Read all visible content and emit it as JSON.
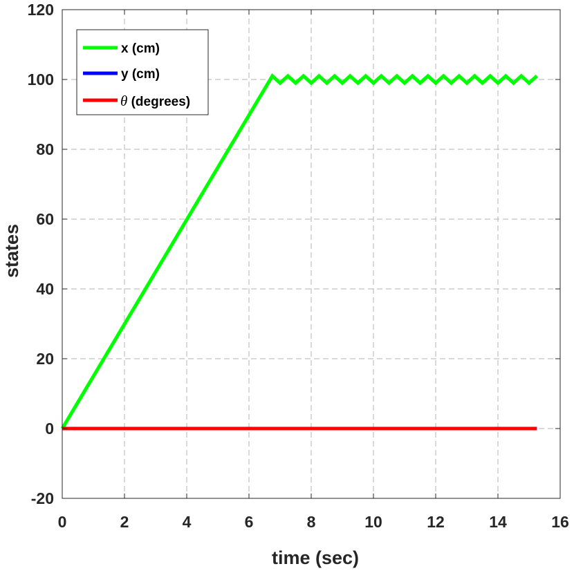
{
  "chart_data": {
    "type": "line",
    "xlabel": "time (sec)",
    "ylabel": "states",
    "xlim": [
      0,
      16
    ],
    "ylim": [
      -20,
      120
    ],
    "xticks": [
      0,
      2,
      4,
      6,
      8,
      10,
      12,
      14,
      16
    ],
    "yticks": [
      -20,
      0,
      20,
      40,
      60,
      80,
      100,
      120
    ],
    "grid": true,
    "legend_position": "top-left",
    "series": [
      {
        "name": "x (cm)",
        "color": "#00ff00",
        "x": [
          0,
          6.75,
          7.0,
          7.25,
          7.5,
          7.75,
          8.0,
          8.25,
          8.5,
          8.75,
          9.0,
          9.25,
          9.5,
          9.75,
          10.0,
          10.25,
          10.5,
          10.75,
          11.0,
          11.25,
          11.5,
          11.75,
          12.0,
          12.25,
          12.5,
          12.75,
          13.0,
          13.25,
          13.5,
          13.75,
          14.0,
          14.25,
          14.5,
          14.75,
          15.0,
          15.25
        ],
        "y": [
          0,
          101,
          99,
          101,
          99,
          101,
          99,
          101,
          99,
          101,
          99,
          101,
          99,
          101,
          99,
          101,
          99,
          101,
          99,
          101,
          99,
          101,
          99,
          101,
          99,
          101,
          99,
          101,
          99,
          101,
          99,
          101,
          99,
          101,
          99,
          101
        ]
      },
      {
        "name": "y (cm)",
        "color": "#0000ff",
        "x": [
          0,
          15.25
        ],
        "y": [
          0,
          0
        ]
      },
      {
        "name": "θ (degrees)",
        "name_symbol": "θ",
        "name_rest": " (degrees)",
        "color": "#ff0000",
        "x": [
          0,
          15.25
        ],
        "y": [
          0,
          0
        ]
      }
    ]
  }
}
